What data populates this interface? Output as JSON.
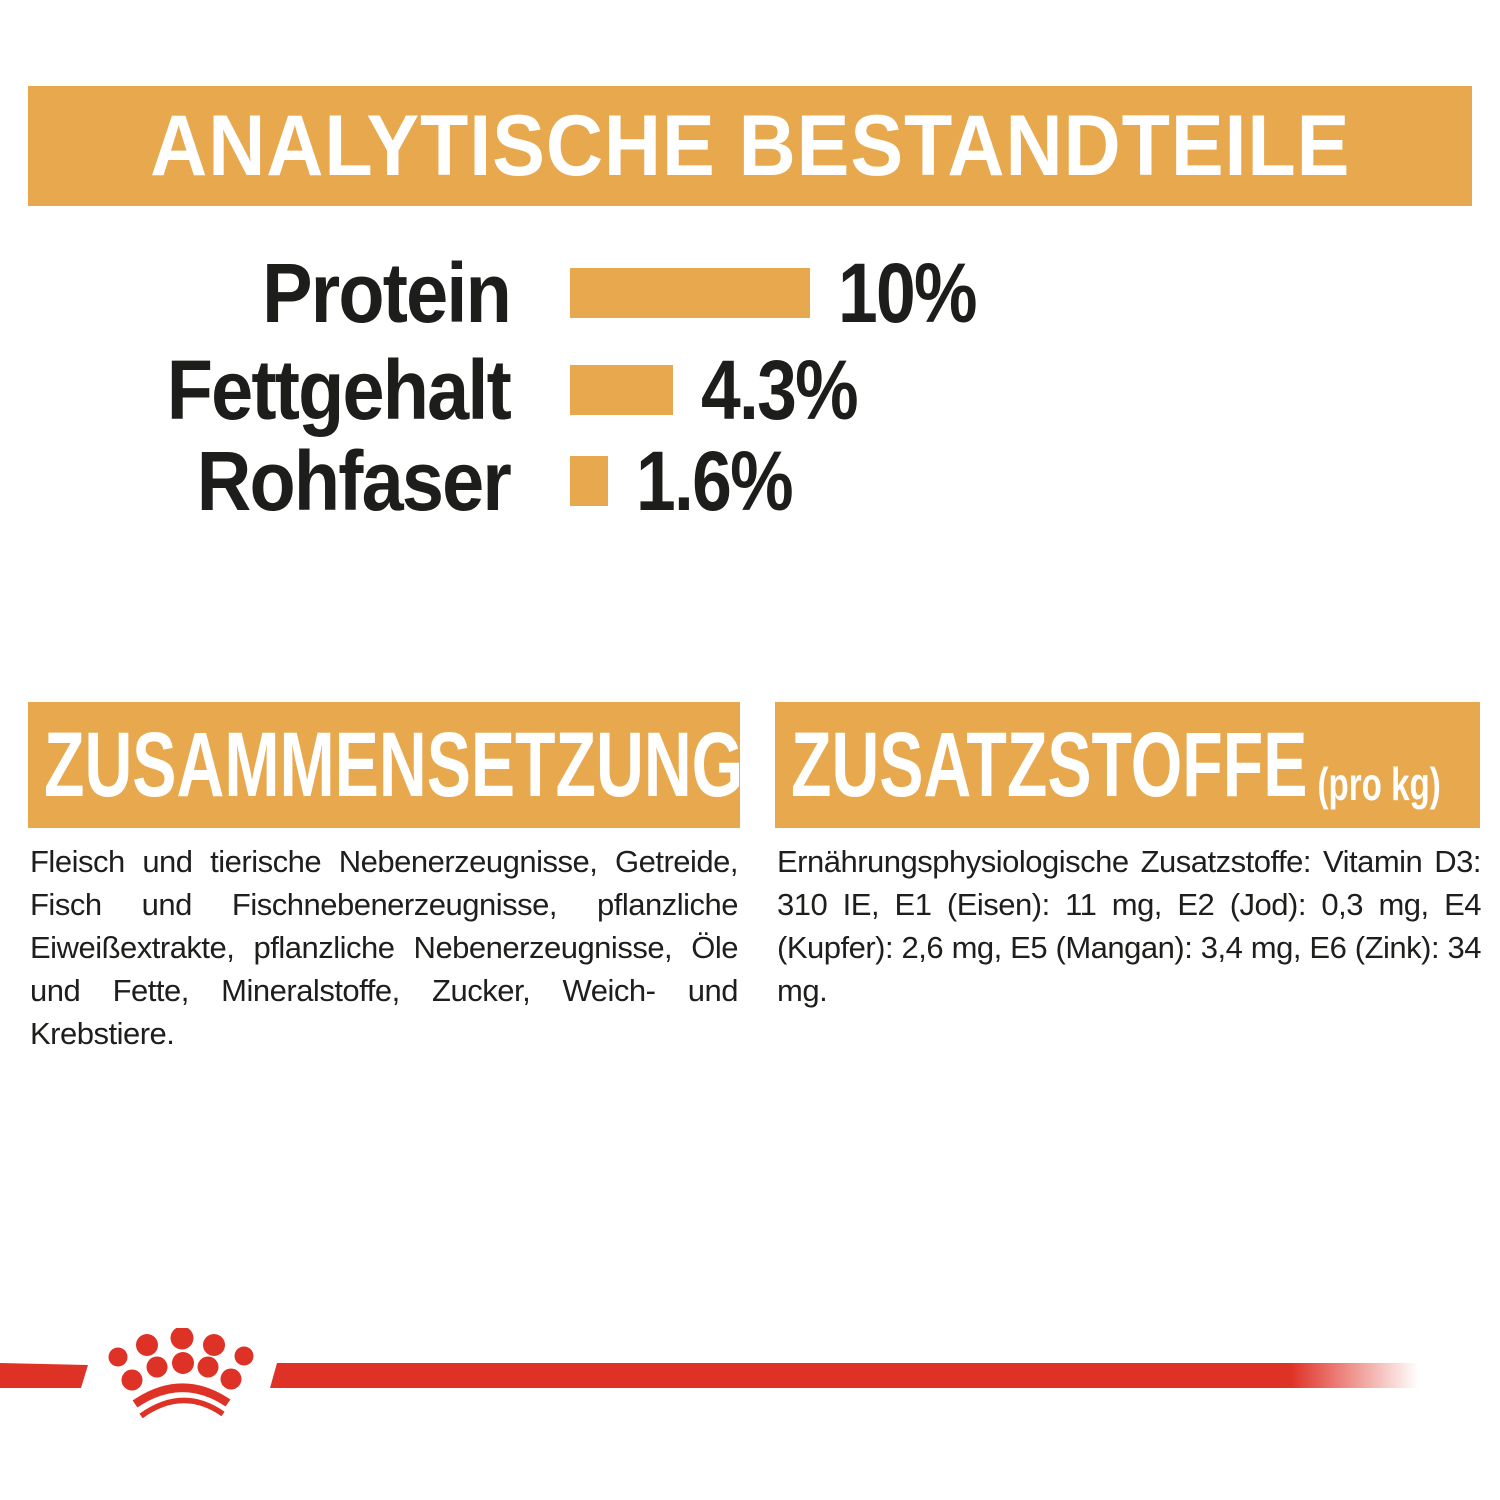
{
  "page": {
    "background": "#ffffff",
    "accent_gold": "#E8A84D",
    "accent_red": "#DF3227",
    "text_dark": "#1d1d1b"
  },
  "chart_data": {
    "type": "bar",
    "orientation": "horizontal",
    "title": "ANALYTISCHE BESTANDTEILE",
    "categories": [
      "Protein",
      "Fettgehalt",
      "Rohfaser"
    ],
    "values": [
      10,
      4.3,
      1.6
    ],
    "value_labels": [
      "10%",
      "4.3%",
      "1.6%"
    ],
    "unit": "%",
    "xlim": [
      0,
      10
    ],
    "bar_color": "#E8A84D",
    "grid": false,
    "legend": false
  },
  "composition": {
    "title": "ZUSAMMENSETZUNG",
    "body": "Fleisch und tierische Nebenerzeugnisse, Getreide, Fisch und Fischnebenerzeugnisse, pflanzliche Eiweißextrakte, pflanzliche Nebenerzeugnisse, Öle und Fette, Mineralstoffe, Zucker, Weich- und Krebstiere."
  },
  "additives": {
    "title": "ZUSATZSTOFFE",
    "title_suffix": "(pro kg)",
    "body": "Ernährungsphysiologische Zusatzstoffe: Vitamin D3: 310 IE, E1 (Eisen): 11 mg, E2 (Jod): 0,3 mg, E4 (Kupfer): 2,6 mg, E5 (Mangan): 3,4 mg, E6 (Zink): 34 mg."
  },
  "footer": {
    "logo": "royal-canin-crown"
  }
}
